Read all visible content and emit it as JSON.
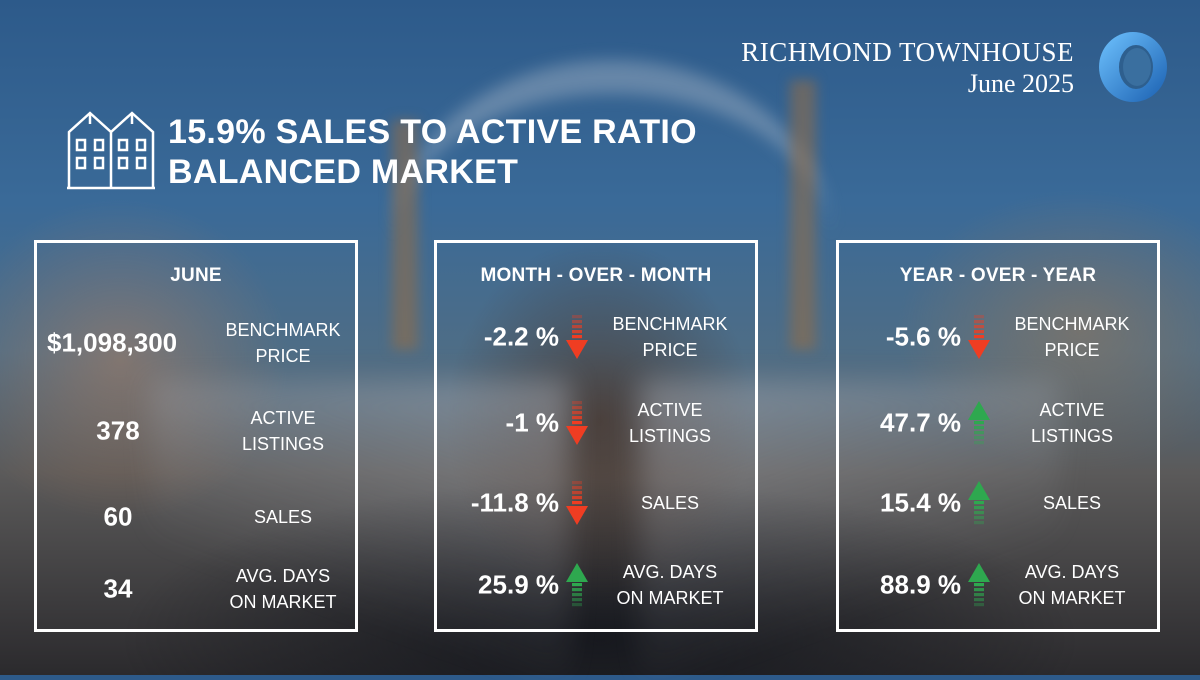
{
  "brand": {
    "title": "RICHMOND TOWNHOUSE",
    "date": "June 2025",
    "logo_icon": "ring-logo-icon",
    "logo_color": "#2a7fd0"
  },
  "headline": {
    "icon": "townhouse-icon",
    "line1": "15.9% SALES TO ACTIVE RATIO",
    "line2": "BALANCED MARKET"
  },
  "colors": {
    "down": "#ef3d22",
    "up": "#2ea84f"
  },
  "june": {
    "title": "JUNE",
    "rows": [
      {
        "value": "$1,098,300",
        "label_line1": "BENCHMARK",
        "label_line2": "PRICE"
      },
      {
        "value": "378",
        "label_line1": "ACTIVE",
        "label_line2": "LISTINGS"
      },
      {
        "value": "60",
        "label_line1": "SALES",
        "label_line2": ""
      },
      {
        "value": "34",
        "label_line1": "AVG. DAYS",
        "label_line2": "ON MARKET"
      }
    ]
  },
  "month_over_month": {
    "title": "MONTH - OVER - MONTH",
    "rows": [
      {
        "value": "-2.2 %",
        "direction": "down",
        "label_line1": "BENCHMARK",
        "label_line2": "PRICE"
      },
      {
        "value": "-1 %",
        "direction": "down",
        "label_line1": "ACTIVE",
        "label_line2": "LISTINGS"
      },
      {
        "value": "-11.8 %",
        "direction": "down",
        "label_line1": "SALES",
        "label_line2": ""
      },
      {
        "value": "25.9 %",
        "direction": "up",
        "label_line1": "AVG. DAYS",
        "label_line2": "ON MARKET"
      }
    ]
  },
  "year_over_year": {
    "title": "YEAR - OVER - YEAR",
    "rows": [
      {
        "value": "-5.6 %",
        "direction": "down",
        "label_line1": "BENCHMARK",
        "label_line2": "PRICE"
      },
      {
        "value": "47.7 %",
        "direction": "up",
        "label_line1": "ACTIVE",
        "label_line2": "LISTINGS"
      },
      {
        "value": "15.4 %",
        "direction": "up",
        "label_line1": "SALES",
        "label_line2": ""
      },
      {
        "value": "88.9 %",
        "direction": "up",
        "label_line1": "AVG. DAYS",
        "label_line2": "ON MARKET"
      }
    ]
  }
}
